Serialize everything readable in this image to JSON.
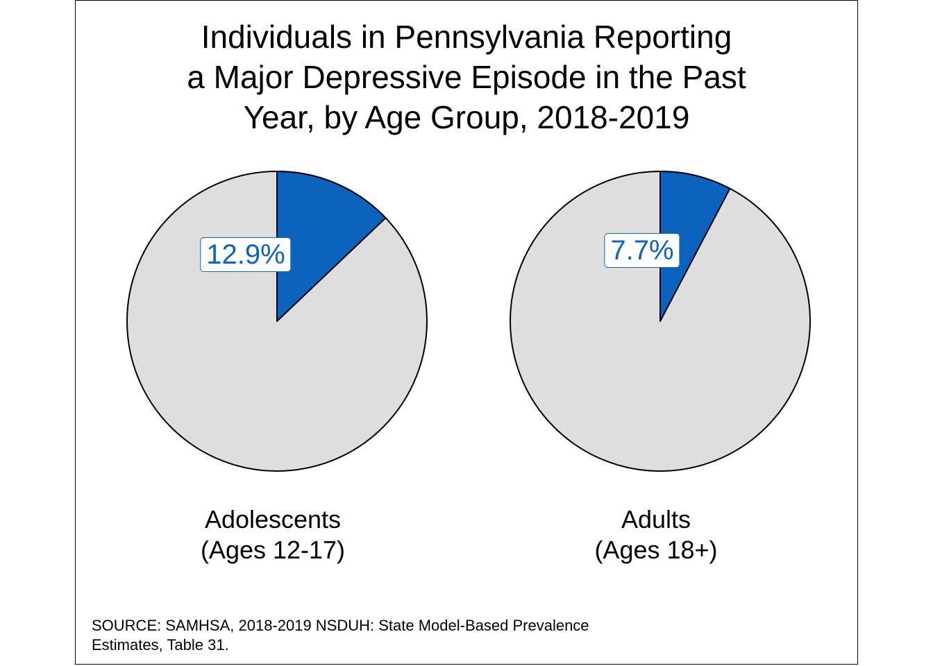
{
  "chart_data": {
    "type": "pie",
    "title_lines": [
      "Individuals in Pennsylvania Reporting",
      "a Major Depressive Episode in the Past",
      "Year, by Age Group, 2018-2019"
    ],
    "pies": [
      {
        "label_lines": [
          "Adolescents",
          "(Ages 12-17)"
        ],
        "value": 12.9,
        "value_label": "12.9%"
      },
      {
        "label_lines": [
          "Adults",
          "(Ages 18+)"
        ],
        "value": 7.7,
        "value_label": "7.7%"
      }
    ],
    "source_lines": [
      "SOURCE: SAMHSA, 2018-2019 NSDUH: State Model-Based Prevalence",
      "Estimates, Table 31."
    ],
    "colors": {
      "highlight": "#0D62BE",
      "remainder": "#DEDEDE",
      "outline": "#000000"
    },
    "legend": "none"
  }
}
